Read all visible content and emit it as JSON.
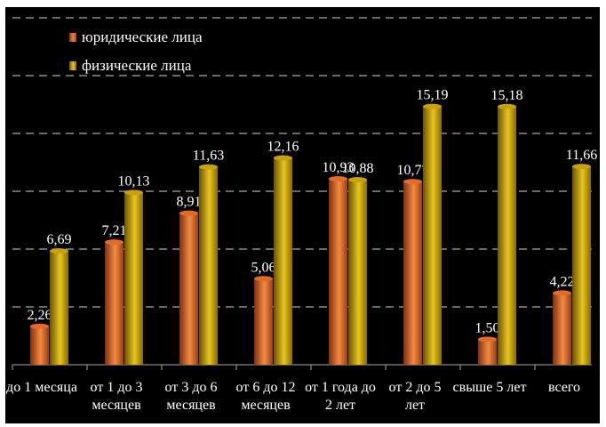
{
  "colors": {
    "legal": "#e56a26",
    "physical": "#c9a10a",
    "background": "#000000",
    "grid": "#8c8c8c",
    "text": "#ffffff"
  },
  "legend": [
    {
      "label": "юридические лица",
      "color": "#e56a26"
    },
    {
      "label": "физические лица",
      "color": "#c9a10a"
    }
  ],
  "chart_data": {
    "type": "bar",
    "title": "",
    "xlabel": "",
    "ylabel": "",
    "ylim": [
      0,
      20.4
    ],
    "grid": true,
    "legend_position": "top-left",
    "categories": [
      "до 1 месяца",
      "от 1 до 3 месяцев",
      "от 3 до 6 месяцев",
      "от 6 до 12 месяцев",
      "от 1 года до 2 лет",
      "от 2 до 5 лет",
      "свыше 5 лет",
      "всего"
    ],
    "series": [
      {
        "name": "юридические лица",
        "values": [
          2.26,
          7.21,
          8.91,
          5.06,
          10.93,
          10.77,
          1.5,
          4.22
        ],
        "labels": [
          "2,26",
          "7,21",
          "8,91",
          "5,06",
          "10,93",
          "10,77",
          "1,50",
          "4,22"
        ]
      },
      {
        "name": "физические лица",
        "values": [
          6.69,
          10.13,
          11.63,
          12.16,
          10.88,
          15.19,
          15.18,
          11.66
        ],
        "labels": [
          "6,69",
          "10,13",
          "11,63",
          "12,16",
          "10,88",
          "15,19",
          "15,18",
          "11,66"
        ]
      }
    ]
  }
}
